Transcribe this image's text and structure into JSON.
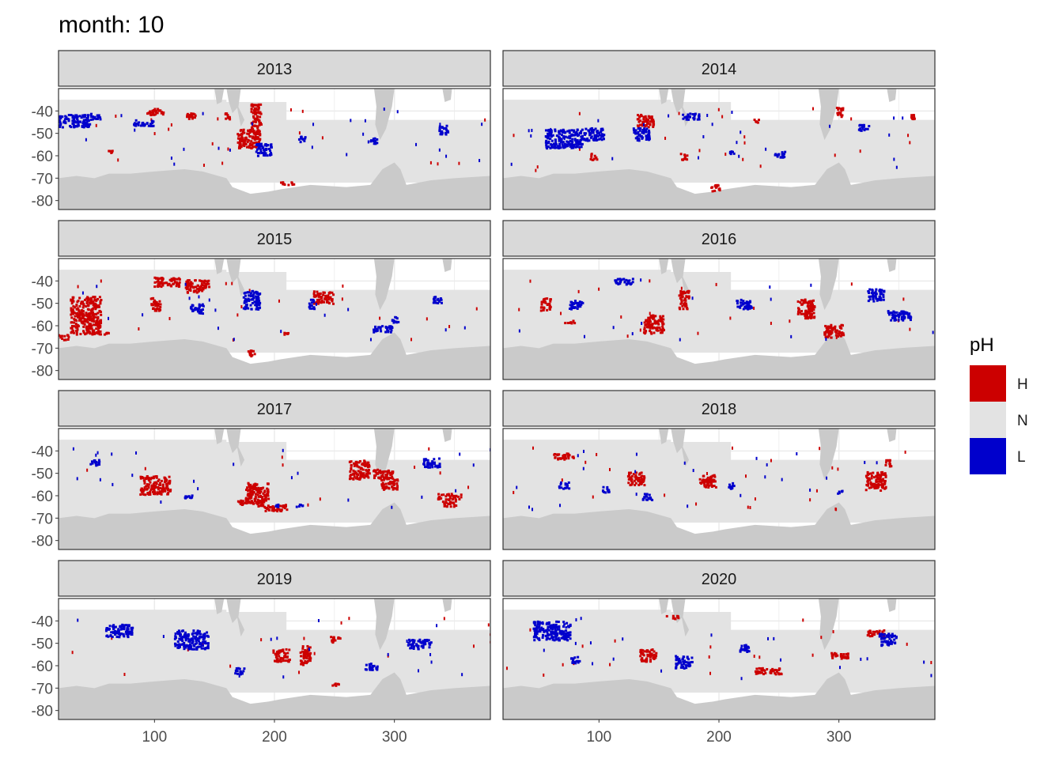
{
  "title": "month: 10",
  "colors": {
    "H": "#cc0000",
    "N": "#e3e3e3",
    "L": "#0000cc",
    "land": "#cacaca",
    "strip_bg": "#d9d9d9",
    "strip_border": "#333333",
    "panel_bg": "#ffffff",
    "grid": "#ebebeb",
    "axis_text": "#4d4d4d"
  },
  "legend": {
    "title": "pH",
    "items": [
      {
        "key": "H",
        "label": "H",
        "color": "#cc0000"
      },
      {
        "key": "N",
        "label": "N",
        "color": "#e3e3e3"
      },
      {
        "key": "L",
        "label": "L",
        "color": "#0000cc"
      }
    ],
    "position": "right"
  },
  "chart_data": {
    "type": "heatmap",
    "facet_by": "year",
    "x_ticks": [
      "100",
      "200",
      "300"
    ],
    "y_ticks": [
      "-40",
      "-50",
      "-60",
      "-70",
      "-80"
    ],
    "xlim": [
      20,
      380
    ],
    "ylim": [
      -84,
      -30
    ],
    "grid": true,
    "panels": [
      {
        "year": "2013",
        "H": [
          [
            100,
            -40,
            10,
            2
          ],
          [
            178,
            -52,
            14,
            6
          ],
          [
            184,
            -42,
            6,
            8
          ],
          [
            210,
            -72,
            8,
            1
          ],
          [
            160,
            -42,
            4,
            2
          ],
          [
            62,
            -58,
            4,
            1
          ],
          [
            130,
            -42,
            6,
            2
          ]
        ],
        "L": [
          [
            30,
            -44,
            22,
            4
          ],
          [
            90,
            -45,
            12,
            2
          ],
          [
            190,
            -57,
            10,
            4
          ],
          [
            282,
            -53,
            4,
            2
          ],
          [
            222,
            -52,
            4,
            2
          ],
          [
            340,
            -48,
            6,
            3
          ],
          [
            50,
            -42,
            6,
            2
          ]
        ]
      },
      {
        "year": "2014",
        "H": [
          [
            196,
            -74,
            6,
            2
          ],
          [
            230,
            -44,
            4,
            1
          ],
          [
            300,
            -40,
            4,
            3
          ],
          [
            360,
            -42,
            4,
            2
          ],
          [
            95,
            -60,
            4,
            2
          ],
          [
            138,
            -44,
            10,
            4
          ],
          [
            170,
            -60,
            4,
            2
          ]
        ],
        "L": [
          [
            70,
            -52,
            22,
            6
          ],
          [
            95,
            -50,
            12,
            4
          ],
          [
            135,
            -50,
            10,
            4
          ],
          [
            176,
            -42,
            10,
            2
          ],
          [
            210,
            -58,
            4,
            1
          ],
          [
            250,
            -59,
            6,
            2
          ],
          [
            320,
            -47,
            6,
            2
          ]
        ]
      },
      {
        "year": "2015",
        "H": [
          [
            42,
            -55,
            18,
            12
          ],
          [
            22,
            -65,
            8,
            2
          ],
          [
            60,
            -63,
            4,
            1
          ],
          [
            110,
            -40,
            16,
            3
          ],
          [
            135,
            -42,
            14,
            4
          ],
          [
            240,
            -47,
            12,
            4
          ],
          [
            100,
            -50,
            6,
            4
          ],
          [
            180,
            -72,
            4,
            2
          ],
          [
            208,
            -63,
            4,
            1
          ]
        ],
        "L": [
          [
            180,
            -48,
            10,
            6
          ],
          [
            290,
            -61,
            12,
            2
          ],
          [
            300,
            -57,
            4,
            2
          ],
          [
            135,
            -52,
            8,
            3
          ],
          [
            230,
            -50,
            4,
            3
          ],
          [
            335,
            -48,
            6,
            2
          ]
        ]
      },
      {
        "year": "2016",
        "H": [
          [
            272,
            -52,
            10,
            6
          ],
          [
            295,
            -62,
            12,
            4
          ],
          [
            145,
            -59,
            12,
            6
          ],
          [
            75,
            -58,
            6,
            1
          ],
          [
            170,
            -48,
            6,
            6
          ],
          [
            55,
            -50,
            6,
            4
          ]
        ],
        "L": [
          [
            220,
            -50,
            10,
            3
          ],
          [
            350,
            -55,
            14,
            3
          ],
          [
            120,
            -40,
            12,
            2
          ],
          [
            330,
            -46,
            10,
            4
          ],
          [
            80,
            -50,
            8,
            3
          ]
        ]
      },
      {
        "year": "2017",
        "H": [
          [
            270,
            -48,
            12,
            6
          ],
          [
            295,
            -54,
            10,
            4
          ],
          [
            345,
            -60,
            14,
            2
          ],
          [
            290,
            -50,
            12,
            3
          ],
          [
            345,
            -63,
            8,
            2
          ],
          [
            100,
            -55,
            18,
            6
          ],
          [
            185,
            -58,
            14,
            6
          ],
          [
            180,
            -63,
            16,
            2
          ],
          [
            200,
            -65,
            14,
            2
          ]
        ],
        "L": [
          [
            130,
            -60,
            8,
            1
          ],
          [
            200,
            -64,
            4,
            1
          ],
          [
            220,
            -64,
            4,
            1
          ],
          [
            330,
            -45,
            10,
            3
          ],
          [
            50,
            -45,
            6,
            2
          ]
        ]
      },
      {
        "year": "2018",
        "H": [
          [
            330,
            -53,
            12,
            6
          ],
          [
            190,
            -53,
            10,
            4
          ],
          [
            130,
            -52,
            10,
            4
          ],
          [
            70,
            -42,
            12,
            2
          ],
          [
            340,
            -45,
            4,
            2
          ]
        ],
        "L": [
          [
            70,
            -55,
            6,
            2
          ],
          [
            140,
            -60,
            6,
            2
          ],
          [
            210,
            -55,
            4,
            2
          ],
          [
            300,
            -58,
            4,
            1
          ],
          [
            105,
            -57,
            4,
            2
          ]
        ]
      },
      {
        "year": "2019",
        "H": [
          [
            225,
            -55,
            6,
            6
          ],
          [
            205,
            -55,
            10,
            4
          ],
          [
            250,
            -48,
            6,
            2
          ],
          [
            250,
            -68,
            4,
            1
          ],
          [
            380,
            -47,
            2,
            4
          ]
        ],
        "L": [
          [
            130,
            -48,
            20,
            6
          ],
          [
            70,
            -44,
            16,
            4
          ],
          [
            280,
            -60,
            8,
            2
          ],
          [
            320,
            -50,
            14,
            3
          ],
          [
            170,
            -62,
            6,
            2
          ]
        ]
      },
      {
        "year": "2020",
        "H": [
          [
            140,
            -55,
            10,
            4
          ],
          [
            240,
            -62,
            16,
            2
          ],
          [
            330,
            -45,
            10,
            2
          ],
          [
            160,
            -38,
            8,
            1
          ],
          [
            300,
            -55,
            10,
            2
          ]
        ],
        "L": [
          [
            60,
            -44,
            22,
            6
          ],
          [
            170,
            -58,
            10,
            4
          ],
          [
            220,
            -52,
            6,
            3
          ],
          [
            340,
            -48,
            10,
            4
          ],
          [
            80,
            -57,
            6,
            2
          ]
        ]
      }
    ]
  }
}
